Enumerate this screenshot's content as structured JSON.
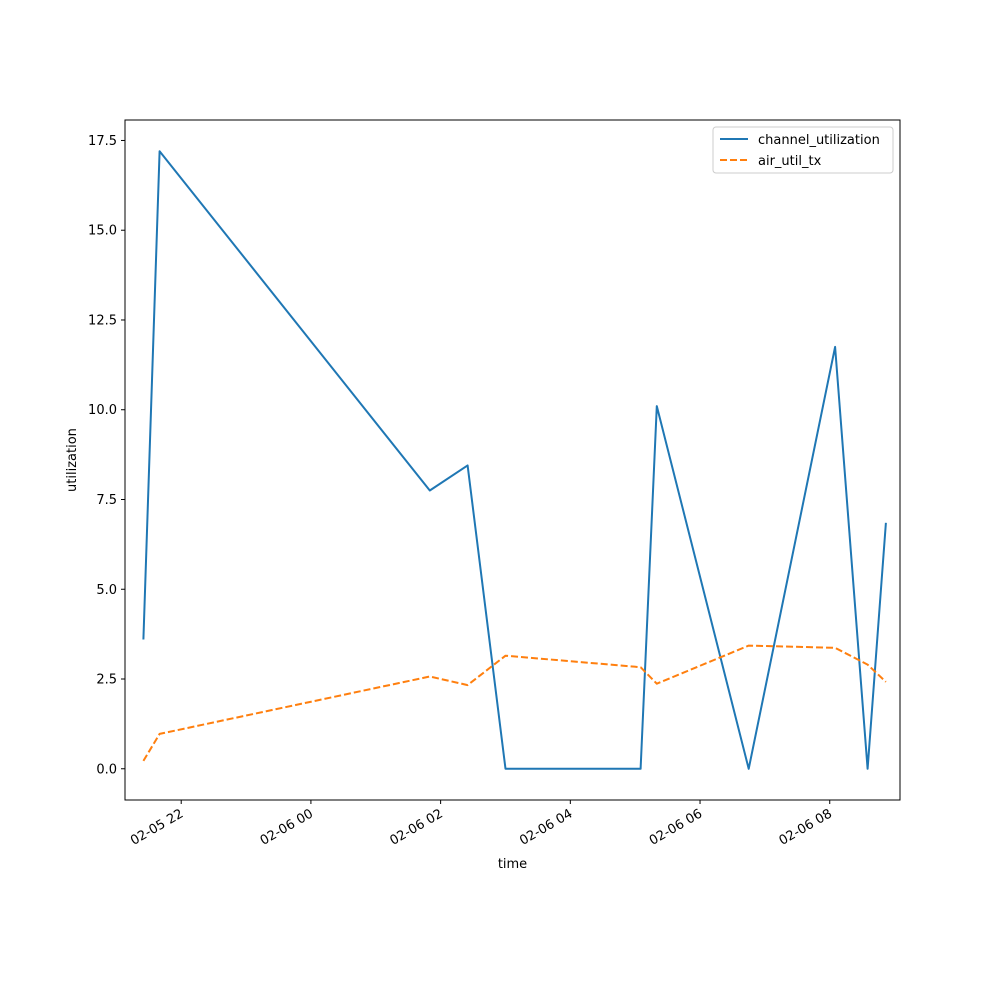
{
  "chart_data": {
    "type": "line",
    "title": "",
    "xlabel": "time",
    "ylabel": "utilization",
    "xlim": [
      "2024-02-05 21:08",
      "2024-02-06 09:05"
    ],
    "ylim": [
      -0.87,
      18.07
    ],
    "x_ticks": [
      {
        "t": "2024-02-05 22:00",
        "label": "02-05 22"
      },
      {
        "t": "2024-02-06 00:00",
        "label": "02-06 00"
      },
      {
        "t": "2024-02-06 02:00",
        "label": "02-06 02"
      },
      {
        "t": "2024-02-06 04:00",
        "label": "02-06 04"
      },
      {
        "t": "2024-02-06 06:00",
        "label": "02-06 06"
      },
      {
        "t": "2024-02-06 08:00",
        "label": "02-06 08"
      }
    ],
    "y_ticks": [
      {
        "v": 0,
        "label": "0.0"
      },
      {
        "v": 2.5,
        "label": "2.5"
      },
      {
        "v": 5,
        "label": "5.0"
      },
      {
        "v": 7.5,
        "label": "7.5"
      },
      {
        "v": 10,
        "label": "10.0"
      },
      {
        "v": 12.5,
        "label": "12.5"
      },
      {
        "v": 15,
        "label": "15.0"
      },
      {
        "v": 17.5,
        "label": "17.5"
      }
    ],
    "grid": false,
    "legend_position": "top-right",
    "series": [
      {
        "name": "channel_utilization",
        "color": "#1f77b4",
        "dash": "solid",
        "points": [
          {
            "t": "2024-02-05 21:25",
            "y": 3.6
          },
          {
            "t": "2024-02-05 21:40",
            "y": 17.2
          },
          {
            "t": "2024-02-06 01:50",
            "y": 7.75
          },
          {
            "t": "2024-02-06 02:25",
            "y": 8.45
          },
          {
            "t": "2024-02-06 03:00",
            "y": 0.0
          },
          {
            "t": "2024-02-06 05:05",
            "y": 0.0
          },
          {
            "t": "2024-02-06 05:20",
            "y": 10.1
          },
          {
            "t": "2024-02-06 06:45",
            "y": 0.0
          },
          {
            "t": "2024-02-06 08:05",
            "y": 11.75
          },
          {
            "t": "2024-02-06 08:35",
            "y": 0.0
          },
          {
            "t": "2024-02-06 08:52",
            "y": 6.85
          }
        ]
      },
      {
        "name": "air_util_tx",
        "color": "#ff7f0e",
        "dash": "dashed",
        "points": [
          {
            "t": "2024-02-05 21:25",
            "y": 0.22
          },
          {
            "t": "2024-02-05 21:40",
            "y": 0.97
          },
          {
            "t": "2024-02-06 01:50",
            "y": 2.57
          },
          {
            "t": "2024-02-06 02:25",
            "y": 2.33
          },
          {
            "t": "2024-02-06 03:00",
            "y": 3.15
          },
          {
            "t": "2024-02-06 05:05",
            "y": 2.83
          },
          {
            "t": "2024-02-06 05:20",
            "y": 2.37
          },
          {
            "t": "2024-02-06 06:45",
            "y": 3.43
          },
          {
            "t": "2024-02-06 08:05",
            "y": 3.37
          },
          {
            "t": "2024-02-06 08:35",
            "y": 2.9
          },
          {
            "t": "2024-02-06 08:52",
            "y": 2.42
          }
        ]
      }
    ]
  }
}
